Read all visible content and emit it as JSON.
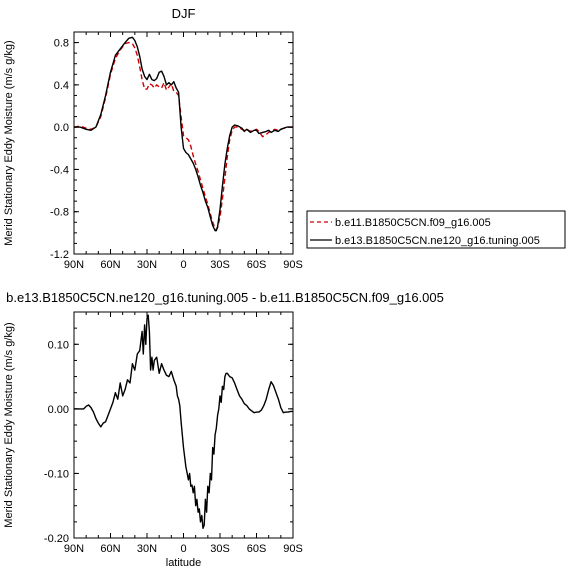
{
  "chart_data": [
    {
      "type": "line",
      "title": "DJF",
      "xlabel": "",
      "ylabel": "Merid Stationary Eddy Moisture (m/s g/kg)",
      "xlim": [
        90,
        -90
      ],
      "ylim": [
        -1.2,
        0.9
      ],
      "xticks": [
        90,
        60,
        30,
        0,
        -30,
        -60,
        -90
      ],
      "xtick_labels": [
        "90N",
        "60N",
        "30N",
        "0",
        "30S",
        "60S",
        "90S"
      ],
      "yticks": [
        -1.2,
        -0.8,
        -0.4,
        0.0,
        0.4,
        0.8
      ],
      "ytick_labels": [
        "-1.2",
        "-0.8",
        "-0.4",
        "0.0",
        "0.4",
        "0.8"
      ],
      "legend_position": "right",
      "series": [
        {
          "name": "b.e11.B1850C5CN.f09_g16.005",
          "color": "#cc0000",
          "dash": "dashed",
          "x": [
            90,
            85,
            80,
            76,
            72,
            68,
            64,
            60,
            56,
            52,
            48,
            45,
            42,
            40,
            38,
            36,
            34,
            32,
            30,
            28,
            26,
            24,
            22,
            20,
            18,
            16,
            14,
            12,
            10,
            8,
            6,
            4,
            2,
            0,
            -2,
            -4,
            -6,
            -8,
            -10,
            -12,
            -14,
            -16,
            -18,
            -20,
            -22,
            -24,
            -26,
            -27,
            -28,
            -30,
            -32,
            -34,
            -36,
            -38,
            -40,
            -42,
            -45,
            -48,
            -50,
            -52,
            -55,
            -58,
            -60,
            -62,
            -65,
            -68,
            -70,
            -72,
            -75,
            -78,
            -80,
            -85,
            -90
          ],
          "y": [
            0.0,
            0.01,
            -0.01,
            -0.02,
            0.0,
            0.1,
            0.28,
            0.5,
            0.65,
            0.73,
            0.79,
            0.8,
            0.79,
            0.75,
            0.68,
            0.57,
            0.45,
            0.36,
            0.36,
            0.41,
            0.4,
            0.37,
            0.4,
            0.38,
            0.37,
            0.42,
            0.35,
            0.38,
            0.41,
            0.34,
            0.33,
            0.3,
            0.1,
            -0.08,
            -0.1,
            -0.12,
            -0.18,
            -0.27,
            -0.35,
            -0.42,
            -0.5,
            -0.58,
            -0.66,
            -0.73,
            -0.82,
            -0.9,
            -0.96,
            -0.97,
            -0.95,
            -0.85,
            -0.68,
            -0.48,
            -0.28,
            -0.12,
            -0.03,
            0.0,
            0.0,
            -0.02,
            -0.03,
            -0.02,
            -0.04,
            -0.03,
            -0.02,
            -0.04,
            -0.09,
            -0.07,
            -0.05,
            -0.04,
            -0.02,
            -0.03,
            -0.02,
            0.0,
            0.0
          ]
        },
        {
          "name": "b.e13.B1850C5CN.ne120_g16.tuning.005",
          "color": "#000000",
          "dash": "solid",
          "x": [
            90,
            85,
            80,
            76,
            72,
            68,
            64,
            60,
            56,
            52,
            48,
            45,
            42,
            40,
            38,
            36,
            34,
            32,
            30,
            28,
            26,
            24,
            22,
            20,
            18,
            16,
            14,
            12,
            10,
            8,
            6,
            4,
            2,
            0,
            -2,
            -4,
            -6,
            -8,
            -10,
            -12,
            -14,
            -16,
            -18,
            -20,
            -22,
            -24,
            -26,
            -27,
            -28,
            -30,
            -32,
            -34,
            -36,
            -38,
            -40,
            -42,
            -45,
            -48,
            -50,
            -52,
            -55,
            -58,
            -60,
            -62,
            -65,
            -68,
            -70,
            -72,
            -75,
            -78,
            -80,
            -85,
            -90
          ],
          "y": [
            0.0,
            0.0,
            -0.02,
            -0.03,
            0.0,
            0.12,
            0.3,
            0.52,
            0.68,
            0.74,
            0.8,
            0.84,
            0.85,
            0.82,
            0.76,
            0.67,
            0.55,
            0.48,
            0.45,
            0.5,
            0.45,
            0.44,
            0.46,
            0.52,
            0.53,
            0.48,
            0.4,
            0.42,
            0.4,
            0.43,
            0.37,
            0.33,
            0.0,
            -0.2,
            -0.24,
            -0.26,
            -0.3,
            -0.34,
            -0.4,
            -0.47,
            -0.55,
            -0.62,
            -0.7,
            -0.76,
            -0.85,
            -0.93,
            -0.98,
            -0.98,
            -0.94,
            -0.78,
            -0.56,
            -0.35,
            -0.2,
            -0.08,
            0.0,
            0.02,
            0.01,
            -0.01,
            -0.04,
            -0.02,
            -0.05,
            -0.03,
            -0.03,
            -0.06,
            -0.05,
            -0.04,
            -0.03,
            -0.05,
            -0.03,
            -0.04,
            -0.02,
            0.0,
            0.0
          ]
        }
      ]
    },
    {
      "type": "line",
      "title": "b.e13.B1850C5CN.ne120_g16.tuning.005 - b.e11.B1850C5CN.f09_g16.005",
      "xlabel": "latitude",
      "ylabel": "Merid Stationary Eddy Moisture (m/s g/kg)",
      "xlim": [
        90,
        -90
      ],
      "ylim": [
        -0.2,
        0.15
      ],
      "xticks": [
        90,
        60,
        30,
        0,
        -30,
        -60,
        -90
      ],
      "xtick_labels": [
        "90N",
        "60N",
        "30N",
        "0",
        "30S",
        "60S",
        "90S"
      ],
      "yticks": [
        -0.2,
        -0.1,
        0.0,
        0.1
      ],
      "ytick_labels": [
        "-0.20",
        "-0.10",
        "0.00",
        "0.10"
      ],
      "series": [
        {
          "name": "",
          "color": "#000000",
          "dash": "solid",
          "x": [
            90,
            86,
            82,
            80,
            78,
            76,
            74,
            72,
            70,
            68,
            66,
            64,
            62,
            60,
            58,
            56,
            54,
            52,
            50,
            48,
            46,
            44,
            42,
            40,
            38,
            36,
            34,
            33,
            32,
            31,
            30,
            29,
            28,
            27,
            26,
            25,
            24,
            22,
            20,
            18,
            16,
            14,
            12,
            10,
            8,
            6,
            5,
            4,
            3,
            2,
            1,
            0,
            -1,
            -2,
            -3,
            -4,
            -5,
            -6,
            -7,
            -8,
            -9,
            -10,
            -11,
            -12,
            -13,
            -14,
            -15,
            -16,
            -17,
            -18,
            -19,
            -20,
            -21,
            -22,
            -23,
            -24,
            -25,
            -26,
            -27,
            -28,
            -29,
            -30,
            -31,
            -32,
            -33,
            -34,
            -35,
            -36,
            -38,
            -40,
            -42,
            -44,
            -46,
            -48,
            -50,
            -52,
            -54,
            -56,
            -58,
            -60,
            -62,
            -64,
            -66,
            -68,
            -70,
            -72,
            -74,
            -76,
            -78,
            -80,
            -82,
            -84,
            -86,
            -88,
            -90
          ],
          "y": [
            0.0,
            0.0,
            0.0,
            0.004,
            0.006,
            0.002,
            -0.005,
            -0.015,
            -0.022,
            -0.028,
            -0.022,
            -0.02,
            -0.01,
            0.0,
            0.01,
            0.025,
            0.015,
            0.04,
            0.02,
            0.03,
            0.045,
            0.04,
            0.07,
            0.06,
            0.085,
            0.09,
            0.12,
            0.085,
            0.13,
            0.1,
            0.14,
            0.145,
            0.12,
            0.06,
            0.08,
            0.06,
            0.075,
            0.08,
            0.055,
            0.07,
            0.06,
            0.052,
            0.05,
            0.058,
            0.045,
            0.035,
            0.02,
            0.015,
            0.005,
            -0.02,
            -0.04,
            -0.06,
            -0.075,
            -0.09,
            -0.1,
            -0.11,
            -0.1,
            -0.12,
            -0.118,
            -0.13,
            -0.12,
            -0.15,
            -0.14,
            -0.16,
            -0.155,
            -0.175,
            -0.165,
            -0.185,
            -0.18,
            -0.14,
            -0.16,
            -0.12,
            -0.13,
            -0.1,
            -0.11,
            -0.06,
            -0.07,
            -0.04,
            -0.03,
            -0.01,
            0.0,
            0.02,
            0.01,
            0.035,
            0.03,
            0.05,
            0.055,
            0.055,
            0.05,
            0.048,
            0.04,
            0.03,
            0.02,
            0.015,
            0.008,
            0.005,
            0.0,
            -0.003,
            -0.006,
            -0.005,
            -0.005,
            -0.002,
            0.005,
            0.015,
            0.03,
            0.042,
            0.036,
            0.025,
            0.015,
            0.002,
            -0.006,
            -0.005,
            -0.005,
            -0.004,
            -0.004
          ]
        }
      ]
    }
  ]
}
